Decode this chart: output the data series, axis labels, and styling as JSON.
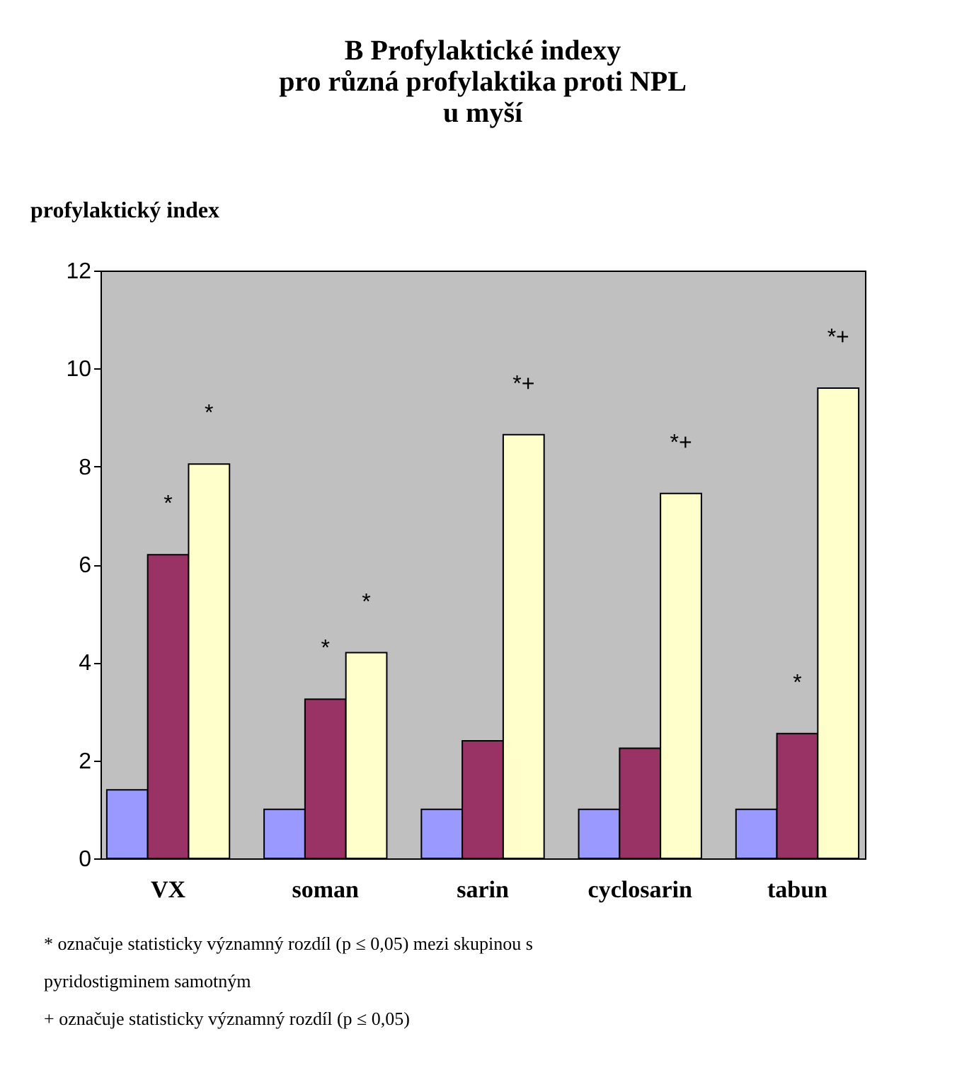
{
  "chart_data": {
    "type": "bar",
    "title": [
      "B        Profylaktické indexy",
      "pro různá profylaktika proti NPL",
      "u myší"
    ],
    "ylabel": "profylaktický index",
    "categories": [
      "VX",
      "soman",
      "sarin",
      "cyclosarin",
      "tabun"
    ],
    "series": [
      {
        "color": "#9999ff",
        "values": [
          1.4,
          1.0,
          1.0,
          1.0,
          1.0
        ]
      },
      {
        "color": "#993366",
        "values": [
          6.2,
          3.25,
          2.4,
          2.25,
          2.55
        ],
        "value_labels": [
          "*",
          "*",
          null,
          null,
          "*"
        ]
      },
      {
        "color": "#ffffcc",
        "values": [
          8.05,
          4.2,
          8.65,
          7.45,
          9.6
        ],
        "value_labels": [
          "*",
          "*",
          "*+",
          "*+",
          "*+"
        ]
      }
    ],
    "ylim": [
      0,
      12
    ],
    "yticks": [
      0,
      2,
      4,
      6,
      8,
      10,
      12
    ],
    "grid": false,
    "legend": false,
    "annotations": [
      "* označuje statisticky významný rozdíl (p ≤ 0,05) mezi skupinou s pyridostigminem samotným",
      "+ označuje statisticky významný rozdíl (p ≤ 0,05)"
    ]
  }
}
